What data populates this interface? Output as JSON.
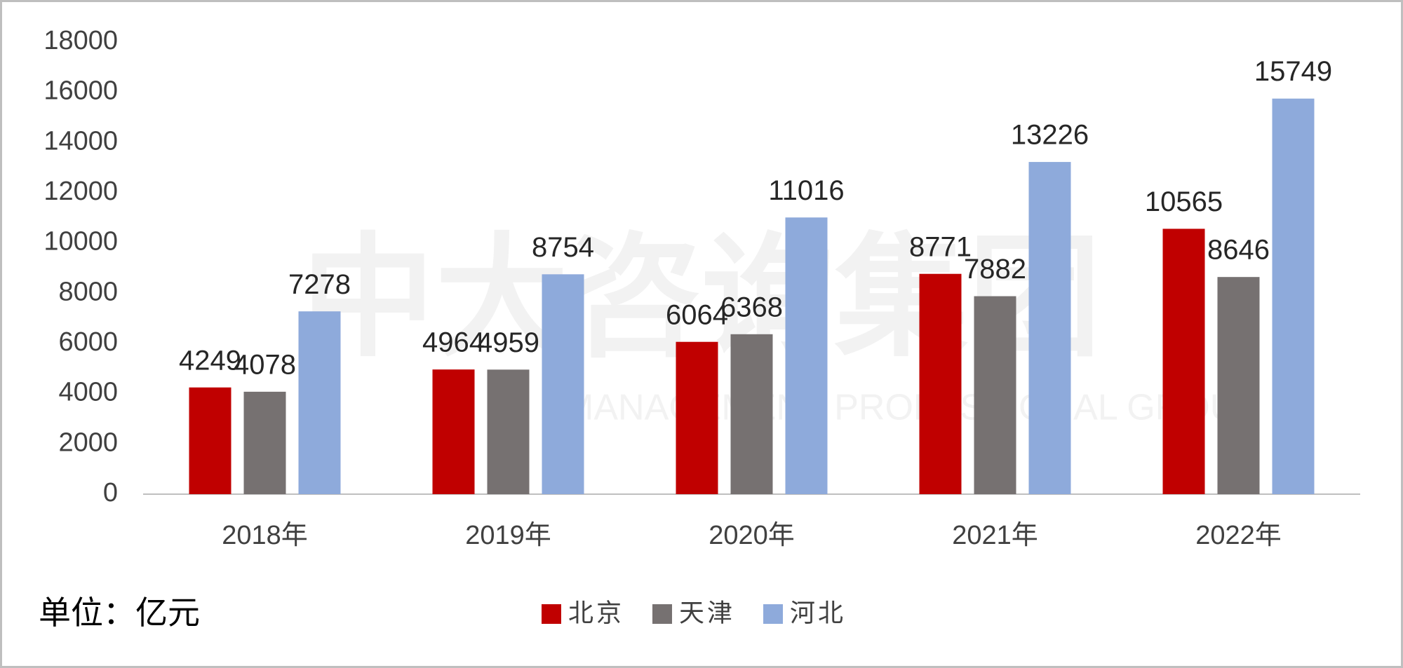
{
  "chart_data": {
    "type": "bar",
    "categories": [
      "2018年",
      "2019年",
      "2020年",
      "2021年",
      "2022年"
    ],
    "series": [
      {
        "name": "北京",
        "color": "#c00000",
        "values": [
          4249,
          4964,
          6064,
          8771,
          10565
        ]
      },
      {
        "name": "天津",
        "color": "#767171",
        "values": [
          4078,
          4959,
          6368,
          7882,
          8646
        ]
      },
      {
        "name": "河北",
        "color": "#8eaadb",
        "values": [
          7278,
          8754,
          11016,
          13226,
          15749
        ]
      }
    ],
    "ylim": [
      0,
      18000
    ],
    "yticks": [
      0,
      2000,
      4000,
      6000,
      8000,
      10000,
      12000,
      14000,
      16000,
      18000
    ],
    "grid": false,
    "legend": "bottom",
    "unit_label": "单位：亿元",
    "watermark": "中大咨询集团",
    "watermark_subtitle": "MANAGEMENT PROFESSIONAL GROUP"
  }
}
